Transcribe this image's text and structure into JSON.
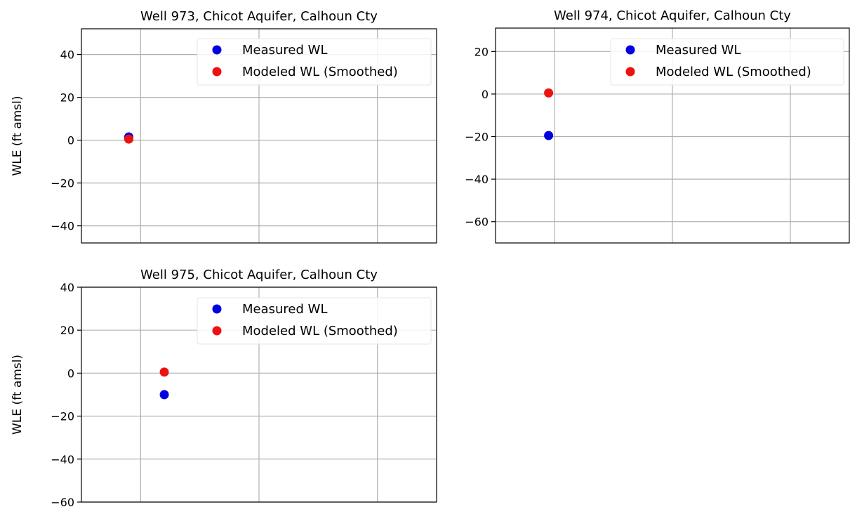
{
  "chart_data": [
    {
      "type": "scatter",
      "title": "Well 973, Chicot Aquifer, Calhoun Cty",
      "ylabel": "WLE (ft amsl)",
      "xlabel": "",
      "ylim": [
        -48,
        52
      ],
      "yticks": [
        40,
        20,
        0,
        -20,
        -40
      ],
      "ytick_labels": [
        "40",
        "20",
        "0",
        "−20",
        "−40"
      ],
      "xgrid": [
        1,
        3,
        5
      ],
      "xlim": [
        0,
        6
      ],
      "grid": true,
      "legend_position": "top-right",
      "series": [
        {
          "name": "Measured WL",
          "color": "#0000e0",
          "points": [
            {
              "x": 0.8,
              "y": 1.5
            }
          ]
        },
        {
          "name": "Modeled WL (Smoothed)",
          "color": "#ee1111",
          "points": [
            {
              "x": 0.8,
              "y": 0.5
            }
          ]
        }
      ]
    },
    {
      "type": "scatter",
      "title": "Well 974, Chicot Aquifer, Calhoun Cty",
      "ylabel": "",
      "xlabel": "",
      "ylim": [
        -70,
        31
      ],
      "yticks": [
        20,
        0,
        -20,
        -40,
        -60
      ],
      "ytick_labels": [
        "20",
        "0",
        "−20",
        "−40",
        "−60"
      ],
      "xgrid": [
        1,
        3,
        5
      ],
      "xlim": [
        0,
        6
      ],
      "grid": true,
      "legend_position": "top-right",
      "series": [
        {
          "name": "Measured WL",
          "color": "#0000e0",
          "points": [
            {
              "x": 0.9,
              "y": -19.5
            }
          ]
        },
        {
          "name": "Modeled WL (Smoothed)",
          "color": "#ee1111",
          "points": [
            {
              "x": 0.9,
              "y": 0.5
            }
          ]
        }
      ]
    },
    {
      "type": "scatter",
      "title": "Well 975, Chicot Aquifer, Calhoun Cty",
      "ylabel": "WLE (ft amsl)",
      "xlabel": "",
      "ylim": [
        -60,
        40
      ],
      "yticks": [
        40,
        20,
        0,
        -20,
        -40,
        -60
      ],
      "ytick_labels": [
        "40",
        "20",
        "0",
        "−20",
        "−40",
        "−60"
      ],
      "xgrid": [
        1,
        3,
        5
      ],
      "xlim": [
        0,
        6
      ],
      "grid": true,
      "legend_position": "top-right",
      "series": [
        {
          "name": "Measured WL",
          "color": "#0000e0",
          "points": [
            {
              "x": 1.4,
              "y": -10
            }
          ]
        },
        {
          "name": "Modeled WL (Smoothed)",
          "color": "#ee1111",
          "points": [
            {
              "x": 1.4,
              "y": 0.5
            }
          ]
        }
      ]
    }
  ]
}
